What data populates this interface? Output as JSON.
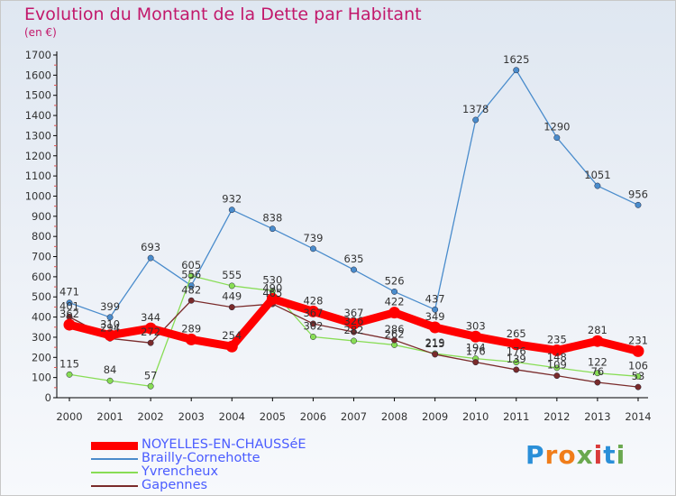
{
  "title": "Evolution du Montant de la Dette par Habitant",
  "subtitle": "(en €)",
  "logo": {
    "text": "Proxiti",
    "letters": [
      "P",
      "r",
      "o",
      "x",
      "i",
      "t",
      "i"
    ],
    "colors": [
      "#2a8fd8",
      "#f07d1a",
      "#f07d1a",
      "#6aa84f",
      "#d93b3b",
      "#2a8fd8",
      "#6aa84f"
    ]
  },
  "chart_data": {
    "type": "line",
    "categories": [
      "2000",
      "2001",
      "2002",
      "2003",
      "2004",
      "2005",
      "2006",
      "2007",
      "2008",
      "2009",
      "2010",
      "2011",
      "2012",
      "2013",
      "2014"
    ],
    "ylim": [
      0,
      1700
    ],
    "yticks": [
      0,
      100,
      200,
      300,
      400,
      500,
      600,
      700,
      800,
      900,
      1000,
      1100,
      1200,
      1300,
      1400,
      1500,
      1600,
      1700
    ],
    "grid": false,
    "series": [
      {
        "name": "NOYELLES-EN-CHAUSSéE",
        "color": "#ff0000",
        "emphasis": true,
        "values": [
          362,
          310,
          344,
          289,
          254,
          490,
          428,
          367,
          422,
          349,
          303,
          265,
          235,
          281,
          231
        ]
      },
      {
        "name": "Brailly-Cornehotte",
        "color": "#4a8ccc",
        "emphasis": false,
        "values": [
          471,
          399,
          693,
          556,
          932,
          838,
          739,
          635,
          526,
          437,
          1378,
          1625,
          1290,
          1051,
          956
        ]
      },
      {
        "name": "Yvrencheux",
        "color": "#88dd55",
        "emphasis": false,
        "values": [
          115,
          84,
          57,
          605,
          555,
          530,
          302,
          282,
          262,
          219,
          194,
          176,
          148,
          122,
          106
        ]
      },
      {
        "name": "Gapennes",
        "color": "#7a2b2b",
        "emphasis": false,
        "values": [
          401,
          294,
          272,
          482,
          449,
          465,
          367,
          326,
          286,
          215,
          176,
          139,
          109,
          76,
          53
        ]
      }
    ]
  }
}
